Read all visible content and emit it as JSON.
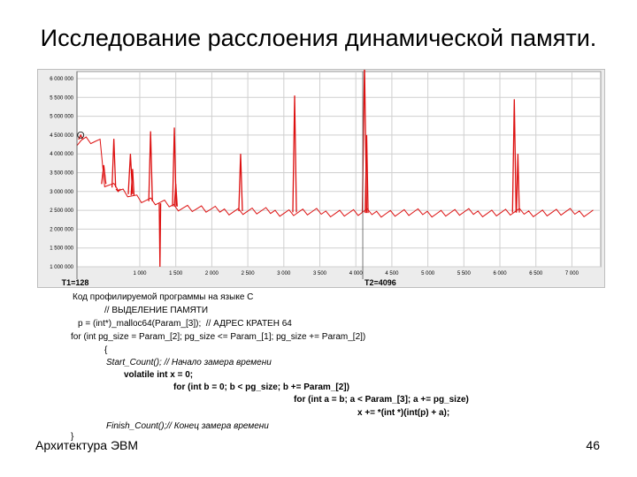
{
  "slide": {
    "title": "Исследование расслоения динамической памяти.",
    "footer_left": "Архитектура ЭВМ",
    "page_number": "46"
  },
  "chart_data": {
    "type": "line",
    "title": "",
    "xlabel": "",
    "ylabel": "",
    "x_ticks": [
      "1 000",
      "1 500",
      "2 000",
      "2 500",
      "3 000",
      "3 500",
      "4 000",
      "4 500",
      "5 000",
      "5 500",
      "6 000",
      "6 500",
      "7 000"
    ],
    "x_tick_values": [
      1000,
      1500,
      2000,
      2500,
      3000,
      3500,
      4000,
      4500,
      5000,
      5500,
      6000,
      6500,
      7000
    ],
    "y_ticks": [
      "1 000 000",
      "1 500 000",
      "2 000 000",
      "2 500 000",
      "3 000 000",
      "3 500 000",
      "4 000 000",
      "4 500 000",
      "5 000 000",
      "5 500 000",
      "6 000 000"
    ],
    "y_tick_values": [
      1000000,
      1500000,
      2000000,
      2500000,
      3000000,
      3500000,
      4000000,
      4500000,
      5000000,
      5500000,
      6000000
    ],
    "xlim": [
      128,
      7400
    ],
    "ylim": [
      1000000,
      6000000
    ],
    "grid": true,
    "line_color": "#dd1111",
    "baseline": [
      [
        128,
        4330000
      ],
      [
        200,
        4400000
      ],
      [
        350,
        4350000
      ],
      [
        450,
        4300000
      ],
      [
        500,
        3200000
      ],
      [
        800,
        3000000
      ],
      [
        1000,
        2800000
      ],
      [
        1500,
        2600000
      ],
      [
        2000,
        2500000
      ],
      [
        3000,
        2450000
      ],
      [
        4000,
        2430000
      ],
      [
        5000,
        2430000
      ],
      [
        6000,
        2440000
      ],
      [
        7300,
        2440000
      ]
    ],
    "spikes": [
      {
        "x": 180,
        "y": 4500000,
        "w": 60
      },
      {
        "x": 500,
        "y": 3700000,
        "w": 60
      },
      {
        "x": 640,
        "y": 4400000,
        "w": 50
      },
      {
        "x": 700,
        "y": 3000000,
        "w": 60
      },
      {
        "x": 870,
        "y": 4000000,
        "w": 60
      },
      {
        "x": 900,
        "y": 3600000,
        "w": 40
      },
      {
        "x": 1150,
        "y": 4600000,
        "w": 50
      },
      {
        "x": 1280,
        "y": 1000000,
        "w": 20
      },
      {
        "x": 1480,
        "y": 4700000,
        "w": 50
      },
      {
        "x": 1500,
        "y": 3200000,
        "w": 40
      },
      {
        "x": 2400,
        "y": 4000000,
        "w": 50
      },
      {
        "x": 3150,
        "y": 5550000,
        "w": 50
      },
      {
        "x": 4120,
        "y": 6400000,
        "w": 60
      },
      {
        "x": 4150,
        "y": 4500000,
        "w": 40
      },
      {
        "x": 6200,
        "y": 5450000,
        "w": 50
      },
      {
        "x": 6250,
        "y": 4000000,
        "w": 40
      }
    ],
    "annotations": [
      {
        "label": "T1=128",
        "x": 128
      },
      {
        "label": "T2=4096",
        "x": 4096
      },
      {
        "label": "1",
        "x": 4120,
        "y": 6550000
      }
    ]
  },
  "code": {
    "l0": "Код профилируемой программы на языке С",
    "l1": "// ВЫДЕЛЕНИЕ ПАМЯТИ",
    "l2": "p = (int*)_malloc64(Param_[3]);  // АДРЕС КРАТЕН 64",
    "l3": "for (int pg_size = Param_[2]; pg_size <= Param_[1]; pg_size += Param_[2])",
    "l4": "{",
    "l5": "Start_Count(); // Начало замера времени",
    "l6": "volatile int x = 0;",
    "l7": "for (int b = 0; b < pg_size; b += Param_[2])",
    "l8": "for (int a = b; a < Param_[3]; a += pg_size)",
    "l9": "x += *(int *)(int(p) + a);",
    "l10": "Finish_Count();// Конец замера времени",
    "l11": "}"
  }
}
